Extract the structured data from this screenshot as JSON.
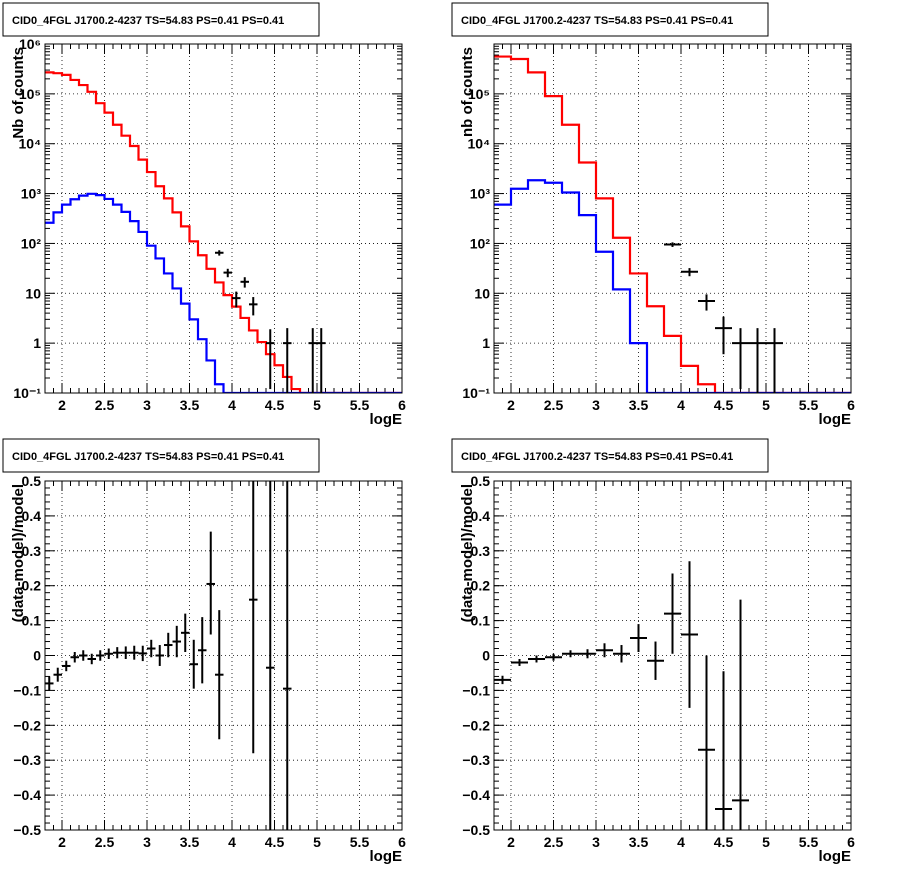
{
  "chart_data": [
    {
      "type": "line",
      "title": "CID0_4FGL J1700.2-4237 TS=54.83 PS=0.41 PS=0.41",
      "xlabel": "logE",
      "ylabel": "Nb of counts",
      "yscale": "log",
      "xlim": [
        1.8,
        6
      ],
      "ylim": [
        0.1,
        1000000
      ],
      "x_ticks": [
        "2",
        "2.5",
        "3",
        "3.5",
        "4",
        "4.5",
        "5",
        "5.5",
        "6"
      ],
      "y_ticks": [
        "10⁻¹",
        "1",
        "10",
        "10²",
        "10³",
        "10⁴",
        "10⁵",
        "10⁶"
      ],
      "grid": true,
      "bin_edges": [
        1.8,
        1.9,
        2.0,
        2.1,
        2.2,
        2.3,
        2.4,
        2.5,
        2.6,
        2.7,
        2.8,
        2.9,
        3.0,
        3.1,
        3.2,
        3.3,
        3.4,
        3.5,
        3.6,
        3.7,
        3.8,
        3.9,
        4.0,
        4.1,
        4.2,
        4.3,
        4.4,
        4.5,
        4.6,
        4.7,
        4.8,
        4.9,
        5.0,
        5.1,
        5.2,
        5.3,
        5.4,
        5.5,
        5.6,
        5.7,
        5.8,
        5.9,
        6.0
      ],
      "series": [
        {
          "color": "#ff0000",
          "kind": "step",
          "values": [
            270000,
            260000,
            240000,
            190000,
            150000,
            110000,
            65000,
            42000,
            24000,
            14500,
            9000,
            4800,
            2700,
            1400,
            800,
            420,
            220,
            110,
            58,
            31,
            16.5,
            9.2,
            5.4,
            3.2,
            1.8,
            1.05,
            0.6,
            0.36,
            0.21,
            0.12,
            0.08,
            0.06,
            0.05,
            0.05,
            0.05,
            0.05,
            0.05,
            0.05,
            0.05,
            0.05,
            0.05,
            0.05
          ]
        },
        {
          "color": "#0000ff",
          "kind": "step",
          "values": [
            260,
            420,
            600,
            770,
            910,
            990,
            930,
            780,
            600,
            430,
            280,
            170,
            90,
            50,
            25,
            12.5,
            6.2,
            3.0,
            1.2,
            0.45,
            0.15,
            0.05,
            0.05,
            0.05,
            0.05,
            0.05,
            0.05,
            0.05,
            0.05,
            0.05,
            0.05,
            0.05,
            0.05,
            0.05,
            0.05,
            0.05,
            0.05,
            0.05,
            0.05,
            0.05,
            0.05,
            0.05
          ]
        }
      ],
      "data_points": [
        {
          "x": 3.85,
          "xerr": 0.05,
          "y": 65,
          "ylo": 57,
          "yhi": 73
        },
        {
          "x": 3.95,
          "xerr": 0.05,
          "y": 26,
          "ylo": 21,
          "yhi": 31
        },
        {
          "x": 4.05,
          "xerr": 0.05,
          "y": 8,
          "ylo": 5.2,
          "yhi": 10.8
        },
        {
          "x": 4.15,
          "xerr": 0.05,
          "y": 17,
          "ylo": 13,
          "yhi": 21
        },
        {
          "x": 4.25,
          "xerr": 0.05,
          "y": 6,
          "ylo": 3.6,
          "yhi": 8.4
        },
        {
          "x": 4.45,
          "xerr": 0.05,
          "y": 1,
          "ylo": 0.12,
          "yhi": 1.9
        },
        {
          "x": 4.65,
          "xerr": 0.05,
          "y": 1,
          "ylo": 0.1,
          "yhi": 2.0
        },
        {
          "x": 4.95,
          "xerr": 0.05,
          "y": 1,
          "ylo": 0.1,
          "yhi": 2.0
        },
        {
          "x": 5.05,
          "xerr": 0.05,
          "y": 1,
          "ylo": 0.1,
          "yhi": 2.0
        }
      ]
    },
    {
      "type": "line",
      "title": "CID0_4FGL J1700.2-4237 TS=54.83 PS=0.41 PS=0.41",
      "xlabel": "logE",
      "ylabel": "nb of counts",
      "yscale": "log",
      "xlim": [
        1.8,
        6
      ],
      "ylim": [
        0.1,
        1000000
      ],
      "x_ticks": [
        "2",
        "2.5",
        "3",
        "3.5",
        "4",
        "4.5",
        "5",
        "5.5",
        "6"
      ],
      "y_ticks": [
        "10⁻¹",
        "1",
        "10",
        "10²",
        "10³",
        "10⁴",
        "10⁵"
      ],
      "grid": true,
      "bin_edges": [
        1.8,
        2.0,
        2.2,
        2.4,
        2.6,
        2.8,
        3.0,
        3.2,
        3.4,
        3.6,
        3.8,
        4.0,
        4.2,
        4.4,
        4.6,
        4.8,
        5.0,
        5.2,
        5.4,
        5.6,
        5.8,
        6.0
      ],
      "series": [
        {
          "color": "#ff0000",
          "kind": "step",
          "values": [
            560000,
            500000,
            270000,
            90000,
            24000,
            4200,
            800,
            130,
            25,
            5.5,
            1.4,
            0.35,
            0.15,
            0.1,
            0.05,
            0.05,
            0.05,
            0.05,
            0.05,
            0.05,
            0.05
          ]
        },
        {
          "color": "#0000ff",
          "kind": "step",
          "values": [
            600,
            1250,
            1850,
            1650,
            1050,
            370,
            68,
            12,
            1.0,
            0.05,
            0.05,
            0.05,
            0.05,
            0.05,
            0.05,
            0.05,
            0.05,
            0.05,
            0.05,
            0.05,
            0.05
          ]
        }
      ],
      "data_points": [
        {
          "x": 3.9,
          "xerr": 0.1,
          "y": 95,
          "ylo": 85,
          "yhi": 105
        },
        {
          "x": 4.1,
          "xerr": 0.1,
          "y": 27,
          "ylo": 22,
          "yhi": 32
        },
        {
          "x": 4.3,
          "xerr": 0.1,
          "y": 7,
          "ylo": 4.5,
          "yhi": 9.5
        },
        {
          "x": 4.5,
          "xerr": 0.1,
          "y": 2,
          "ylo": 0.6,
          "yhi": 3.4
        },
        {
          "x": 4.7,
          "xerr": 0.1,
          "y": 1,
          "ylo": 0.12,
          "yhi": 2.0
        },
        {
          "x": 4.9,
          "xerr": 0.1,
          "y": 1,
          "ylo": 0.1,
          "yhi": 2.0
        },
        {
          "x": 5.1,
          "xerr": 0.1,
          "y": 1,
          "ylo": 0.1,
          "yhi": 2.0
        }
      ]
    },
    {
      "type": "scatter",
      "title": "CID0_4FGL J1700.2-4237 TS=54.83 PS=0.41 PS=0.41",
      "xlabel": "logE",
      "ylabel": "(data-model)/model",
      "yscale": "linear",
      "xlim": [
        1.8,
        6
      ],
      "ylim": [
        -0.5,
        0.5
      ],
      "x_ticks": [
        "2",
        "2.5",
        "3",
        "3.5",
        "4",
        "4.5",
        "5",
        "5.5",
        "6"
      ],
      "y_ticks": [
        "−0.5",
        "−0.4",
        "−0.3",
        "−0.2",
        "−0.1",
        "0",
        "0.1",
        "0.2",
        "0.3",
        "0.4",
        "0.5"
      ],
      "grid": true,
      "data_points": [
        {
          "x": 1.85,
          "xerr": 0.05,
          "y": -0.08,
          "ylo": -0.1,
          "yhi": -0.06
        },
        {
          "x": 1.95,
          "xerr": 0.05,
          "y": -0.055,
          "ylo": -0.075,
          "yhi": -0.035
        },
        {
          "x": 2.05,
          "xerr": 0.05,
          "y": -0.03,
          "ylo": -0.045,
          "yhi": -0.015
        },
        {
          "x": 2.15,
          "xerr": 0.05,
          "y": -0.005,
          "ylo": -0.02,
          "yhi": 0.01
        },
        {
          "x": 2.25,
          "xerr": 0.05,
          "y": 0.0,
          "ylo": -0.015,
          "yhi": 0.015
        },
        {
          "x": 2.35,
          "xerr": 0.05,
          "y": -0.01,
          "ylo": -0.025,
          "yhi": 0.005
        },
        {
          "x": 2.45,
          "xerr": 0.05,
          "y": 0.0,
          "ylo": -0.015,
          "yhi": 0.015
        },
        {
          "x": 2.55,
          "xerr": 0.05,
          "y": 0.005,
          "ylo": -0.01,
          "yhi": 0.02
        },
        {
          "x": 2.65,
          "xerr": 0.05,
          "y": 0.008,
          "ylo": -0.008,
          "yhi": 0.024
        },
        {
          "x": 2.75,
          "xerr": 0.05,
          "y": 0.008,
          "ylo": -0.01,
          "yhi": 0.026
        },
        {
          "x": 2.85,
          "xerr": 0.05,
          "y": 0.008,
          "ylo": -0.012,
          "yhi": 0.028
        },
        {
          "x": 2.95,
          "xerr": 0.05,
          "y": 0.006,
          "ylo": -0.016,
          "yhi": 0.028
        },
        {
          "x": 3.05,
          "xerr": 0.05,
          "y": 0.02,
          "ylo": -0.005,
          "yhi": 0.045
        },
        {
          "x": 3.15,
          "xerr": 0.05,
          "y": 0.0,
          "ylo": -0.03,
          "yhi": 0.03
        },
        {
          "x": 3.25,
          "xerr": 0.05,
          "y": 0.03,
          "ylo": -0.005,
          "yhi": 0.065
        },
        {
          "x": 3.35,
          "xerr": 0.05,
          "y": 0.04,
          "ylo": -0.005,
          "yhi": 0.085
        },
        {
          "x": 3.45,
          "xerr": 0.05,
          "y": 0.065,
          "ylo": 0.01,
          "yhi": 0.12
        },
        {
          "x": 3.55,
          "xerr": 0.05,
          "y": -0.025,
          "ylo": -0.095,
          "yhi": 0.045
        },
        {
          "x": 3.65,
          "xerr": 0.05,
          "y": 0.015,
          "ylo": -0.08,
          "yhi": 0.11
        },
        {
          "x": 3.75,
          "xerr": 0.05,
          "y": 0.205,
          "ylo": 0.06,
          "yhi": 0.355
        },
        {
          "x": 3.85,
          "xerr": 0.05,
          "y": -0.055,
          "ylo": -0.24,
          "yhi": 0.13
        },
        {
          "x": 4.25,
          "xerr": 0.05,
          "y": 0.16,
          "ylo": -0.28,
          "yhi": 0.5
        },
        {
          "x": 4.45,
          "xerr": 0.05,
          "y": -0.035,
          "ylo": -0.5,
          "yhi": 0.5
        },
        {
          "x": 4.65,
          "xerr": 0.05,
          "y": -0.095,
          "ylo": -0.5,
          "yhi": 0.5
        }
      ]
    },
    {
      "type": "scatter",
      "title": "CID0_4FGL J1700.2-4237 TS=54.83 PS=0.41 PS=0.41",
      "xlabel": "logE",
      "ylabel": "(data-model)/model",
      "yscale": "linear",
      "xlim": [
        1.8,
        6
      ],
      "ylim": [
        -0.5,
        0.5
      ],
      "x_ticks": [
        "2",
        "2.5",
        "3",
        "3.5",
        "4",
        "4.5",
        "5",
        "5.5",
        "6"
      ],
      "y_ticks": [
        "−0.5",
        "−0.4",
        "−0.3",
        "−0.2",
        "−0.1",
        "0",
        "0.1",
        "0.2",
        "0.3",
        "0.4",
        "0.5"
      ],
      "grid": true,
      "data_points": [
        {
          "x": 1.9,
          "xerr": 0.1,
          "y": -0.07,
          "ylo": -0.082,
          "yhi": -0.058
        },
        {
          "x": 2.1,
          "xerr": 0.1,
          "y": -0.02,
          "ylo": -0.03,
          "yhi": -0.01
        },
        {
          "x": 2.3,
          "xerr": 0.1,
          "y": -0.01,
          "ylo": -0.02,
          "yhi": 0.0
        },
        {
          "x": 2.5,
          "xerr": 0.1,
          "y": -0.005,
          "ylo": -0.015,
          "yhi": 0.005
        },
        {
          "x": 2.7,
          "xerr": 0.1,
          "y": 0.005,
          "ylo": -0.005,
          "yhi": 0.015
        },
        {
          "x": 2.9,
          "xerr": 0.1,
          "y": 0.005,
          "ylo": -0.008,
          "yhi": 0.018
        },
        {
          "x": 3.1,
          "xerr": 0.1,
          "y": 0.015,
          "ylo": -0.005,
          "yhi": 0.035
        },
        {
          "x": 3.3,
          "xerr": 0.1,
          "y": 0.005,
          "ylo": -0.02,
          "yhi": 0.03
        },
        {
          "x": 3.5,
          "xerr": 0.1,
          "y": 0.05,
          "ylo": 0.01,
          "yhi": 0.09
        },
        {
          "x": 3.7,
          "xerr": 0.1,
          "y": -0.015,
          "ylo": -0.07,
          "yhi": 0.04
        },
        {
          "x": 3.9,
          "xerr": 0.1,
          "y": 0.12,
          "ylo": 0.005,
          "yhi": 0.235
        },
        {
          "x": 4.1,
          "xerr": 0.1,
          "y": 0.06,
          "ylo": -0.15,
          "yhi": 0.27
        },
        {
          "x": 4.3,
          "xerr": 0.1,
          "y": -0.27,
          "ylo": -0.5,
          "yhi": 0.0
        },
        {
          "x": 4.5,
          "xerr": 0.1,
          "y": -0.44,
          "ylo": -0.5,
          "yhi": -0.045
        },
        {
          "x": 4.7,
          "xerr": 0.1,
          "y": -0.415,
          "ylo": -0.5,
          "yhi": 0.16
        }
      ]
    }
  ]
}
